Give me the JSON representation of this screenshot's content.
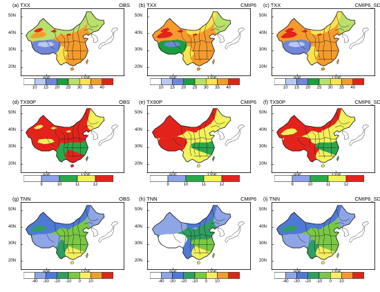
{
  "panels": [
    {
      "id": "a",
      "label": "(a) TXX",
      "source": "OBS",
      "scheme": "txx",
      "pattern": "txx_obs"
    },
    {
      "id": "b",
      "label": "(b) TXX",
      "source": "CMIP6",
      "scheme": "txx",
      "pattern": "txx_cmip"
    },
    {
      "id": "c",
      "label": "(c) TXX",
      "source": "CMIP6_SD",
      "scheme": "txx",
      "pattern": "txx_sd"
    },
    {
      "id": "d",
      "label": "(d) TX90P",
      "source": "OBS",
      "scheme": "tx90p",
      "pattern": "tx_obs"
    },
    {
      "id": "e",
      "label": "(e) TX90P",
      "source": "CMIP6",
      "scheme": "tx90p",
      "pattern": "tx_cmip"
    },
    {
      "id": "f",
      "label": "(f) TX90P",
      "source": "CMIP6_SD",
      "scheme": "tx90p",
      "pattern": "tx_sd"
    },
    {
      "id": "g",
      "label": "(g) TNN",
      "source": "OBS",
      "scheme": "tnn",
      "pattern": "tnn_obs"
    },
    {
      "id": "h",
      "label": "(h) TNN",
      "source": "CMIP6",
      "scheme": "tnn",
      "pattern": "tnn_cmip"
    },
    {
      "id": "i",
      "label": "(i) TNN",
      "source": "CMIP6_SD",
      "scheme": "tnn",
      "pattern": "tnn_sd"
    }
  ],
  "axes": {
    "lat_labels": [
      "50N",
      "40N",
      "30N",
      "20N"
    ],
    "lon_labels": [
      "90E",
      "120E"
    ]
  },
  "colorbars": {
    "txx": {
      "labels": [
        "10",
        "15",
        "20",
        "25",
        "30",
        "35",
        "40"
      ],
      "colors": [
        "#ffffff",
        "#b8c8f0",
        "#6f86d9",
        "#1b9e3e",
        "#b9e06a",
        "#ffe34d",
        "#f59b2c",
        "#e3231b"
      ]
    },
    "tx90p": {
      "labels": [
        "9",
        "10",
        "11",
        "12"
      ],
      "colors": [
        "#ffffff",
        "#8ea2e8",
        "#29a84a",
        "#f2f25a",
        "#e3231b"
      ]
    },
    "tnn": {
      "labels": [
        "-40",
        "-30",
        "-20",
        "-10",
        "0",
        "10"
      ],
      "colors": [
        "#ffffff",
        "#8fa6e6",
        "#4f79d6",
        "#2f9e60",
        "#7ac943",
        "#f5f05a",
        "#f59b2c",
        "#e3231b"
      ]
    }
  },
  "patterns": {
    "txx_obs": {
      "northwest": "#b9e06a",
      "taklimakan": "#f59b2c",
      "hotspots": "#e3231b",
      "tibet": "#6f86d9",
      "tibet_core": "#b8c8f0",
      "inner_mongolia": "#b9e06a",
      "northeast": "#b9e06a",
      "north_china": "#f59b2c",
      "east": "#f59b2c",
      "south": "#f59b2c",
      "sw": "#ffe34d"
    },
    "txx_cmip": {
      "northwest": "#f59b2c",
      "taklimakan": "#e3231b",
      "hotspots": "#e3231b",
      "tibet": "#1b9e3e",
      "tibet_core": "#6f86d9",
      "inner_mongolia": "#ffe34d",
      "northeast": "#b9e06a",
      "north_china": "#f59b2c",
      "east": "#f59b2c",
      "south": "#f59b2c",
      "sw": "#ffe34d"
    },
    "txx_sd": {
      "northwest": "#f59b2c",
      "taklimakan": "#e3231b",
      "hotspots": "#e3231b",
      "tibet": "#6f86d9",
      "tibet_core": "#b8c8f0",
      "inner_mongolia": "#ffe34d",
      "northeast": "#b9e06a",
      "north_china": "#f59b2c",
      "east": "#f59b2c",
      "south": "#f59b2c",
      "sw": "#ffe34d"
    },
    "tx_obs": {
      "northwest": "#e3231b",
      "taklimakan": "#e3231b",
      "hotspots": "#f2f25a",
      "tibet": "#e3231b",
      "tibet_core": "#f2f25a",
      "inner_mongolia": "#e3231b",
      "northeast": "#f2f25a",
      "north_china": "#e3231b",
      "east": "#29a84a",
      "south": "#e3231b",
      "sw": "#29a84a"
    },
    "tx_cmip": {
      "northwest": "#e3231b",
      "taklimakan": "#e3231b",
      "hotspots": "#e3231b",
      "tibet": "#e3231b",
      "tibet_core": "#e3231b",
      "inner_mongolia": "#e3231b",
      "northeast": "#f2f25a",
      "north_china": "#f2f25a",
      "east": "#29a84a",
      "south": "#f2f25a",
      "sw": "#f2f25a"
    },
    "tx_sd": {
      "northwest": "#e3231b",
      "taklimakan": "#f2f25a",
      "hotspots": "#e3231b",
      "tibet": "#e3231b",
      "tibet_core": "#e3231b",
      "inner_mongolia": "#e3231b",
      "northeast": "#f2f25a",
      "north_china": "#f2f25a",
      "east": "#29a84a",
      "south": "#f2f25a",
      "sw": "#e3231b"
    },
    "tnn_obs": {
      "northwest": "#4f79d6",
      "taklimakan": "#2f9e60",
      "hotspots": "#4f79d6",
      "tibet": "#8fa6e6",
      "tibet_core": "#8fa6e6",
      "inner_mongolia": "#4f79d6",
      "northeast": "#8fa6e6",
      "north_china": "#7ac943",
      "east": "#7ac943",
      "south": "#f5f05a",
      "sw": "#2f9e60"
    },
    "tnn_cmip": {
      "northwest": "#8fa6e6",
      "taklimakan": "#8fa6e6",
      "hotspots": "#8fa6e6",
      "tibet": "#ffffff",
      "tibet_core": "#ffffff",
      "inner_mongolia": "#4f79d6",
      "northeast": "#8fa6e6",
      "north_china": "#2f9e60",
      "east": "#7ac943",
      "south": "#f5f05a",
      "sw": "#4f79d6"
    },
    "tnn_sd": {
      "northwest": "#4f79d6",
      "taklimakan": "#2f9e60",
      "hotspots": "#4f79d6",
      "tibet": "#8fa6e6",
      "tibet_core": "#8fa6e6",
      "inner_mongolia": "#4f79d6",
      "northeast": "#8fa6e6",
      "north_china": "#7ac943",
      "east": "#7ac943",
      "south": "#f5f05a",
      "sw": "#2f9e60"
    }
  }
}
